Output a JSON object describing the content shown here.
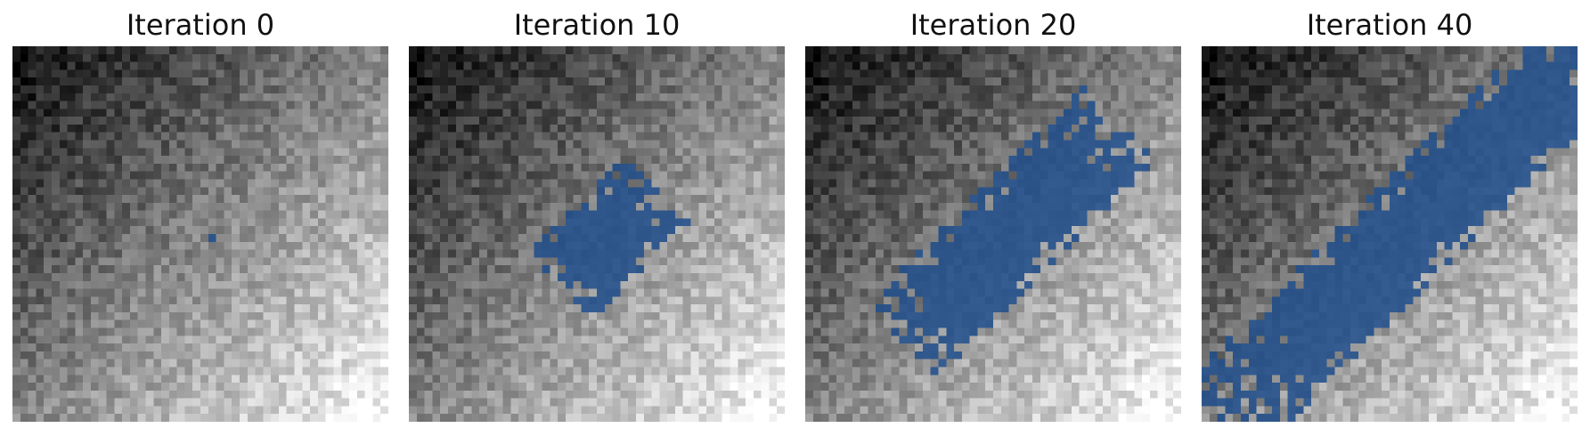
{
  "figure": {
    "panels": [
      {
        "title": "Iteration 0",
        "stage": 0
      },
      {
        "title": "Iteration 10",
        "stage": 1
      },
      {
        "title": "Iteration 20",
        "stage": 2
      },
      {
        "title": "Iteration 40",
        "stage": 3
      }
    ],
    "overlay_color": "#1f4e8c",
    "colormap": "grayscale (dark top-left to light bottom-right)"
  }
}
